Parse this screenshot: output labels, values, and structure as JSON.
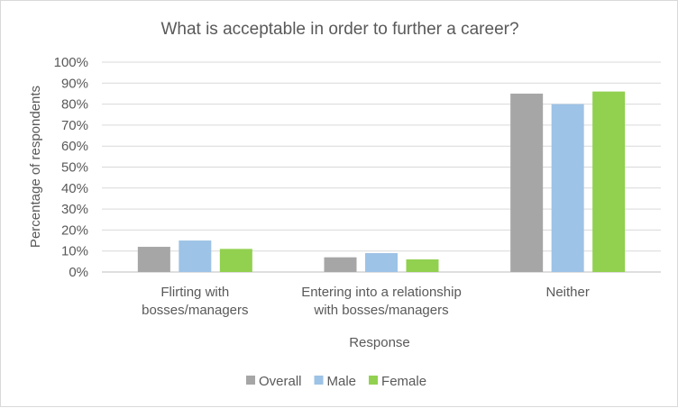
{
  "chart_data": {
    "type": "bar",
    "title": "What is acceptable in order to further a career?",
    "xlabel": "Response",
    "ylabel": "Percentage of respondents",
    "ylim": [
      0,
      100
    ],
    "yticks": [
      "0%",
      "10%",
      "20%",
      "30%",
      "40%",
      "50%",
      "60%",
      "70%",
      "80%",
      "90%",
      "100%"
    ],
    "categories": [
      [
        "Flirting with",
        "bosses/managers"
      ],
      [
        "Entering into a relationship",
        "with bosses/managers"
      ],
      [
        "Neither"
      ]
    ],
    "series": [
      {
        "name": "Overall",
        "color": "#a6a6a6",
        "values": [
          12,
          7,
          85
        ]
      },
      {
        "name": "Male",
        "color": "#9dc3e6",
        "values": [
          15,
          9,
          80
        ]
      },
      {
        "name": "Female",
        "color": "#92d050",
        "values": [
          11,
          6,
          86
        ]
      }
    ],
    "grid": true,
    "legend": "bottom"
  }
}
